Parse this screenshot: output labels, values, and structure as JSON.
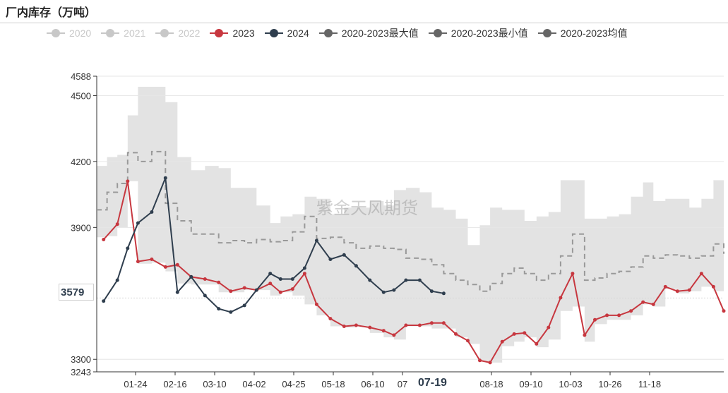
{
  "title": "厂内库存（万吨）",
  "watermark": "紫金天风期货",
  "legend": [
    {
      "name": "2020",
      "color": "#c8c8c8",
      "active": false,
      "style": "dot"
    },
    {
      "name": "2021",
      "color": "#c8c8c8",
      "active": false,
      "style": "dot"
    },
    {
      "name": "2022",
      "color": "#c8c8c8",
      "active": false,
      "style": "dot"
    },
    {
      "name": "2023",
      "color": "#c7373f",
      "active": true,
      "style": "dot"
    },
    {
      "name": "2024",
      "color": "#2f3e4e",
      "active": true,
      "style": "dot"
    },
    {
      "name": "2020-2023最大值",
      "color": "#666666",
      "active": true,
      "style": "dot"
    },
    {
      "name": "2020-2023最小值",
      "color": "#666666",
      "active": true,
      "style": "dot"
    },
    {
      "name": "2020-2023均值",
      "color": "#666666",
      "active": true,
      "style": "dot"
    }
  ],
  "axis_pointer": {
    "y_value": "3579",
    "x_value": "07-19"
  },
  "chart_data": {
    "type": "line",
    "title": "厂内库存（万吨）",
    "ylim": [
      3243,
      4588
    ],
    "y_ticks": [
      3243,
      3300,
      3579,
      3900,
      4200,
      4500,
      4588
    ],
    "x_tick_labels": [
      "01-24",
      "02-16",
      "03-10",
      "04-02",
      "04-25",
      "05-18",
      "06-10",
      "07",
      "07-19",
      "08-18",
      "09-10",
      "10-03",
      "10-26",
      "11-18"
    ],
    "x_range_days": [
      1,
      366
    ],
    "grid": true,
    "legend_position": "top",
    "series": [
      {
        "name": "2023",
        "color": "#c7373f",
        "x": [
          5,
          13,
          19,
          25,
          33,
          41,
          48,
          56,
          64,
          72,
          79,
          87,
          94,
          102,
          108,
          115,
          122,
          129,
          137,
          145,
          152,
          160,
          168,
          174,
          181,
          189,
          196,
          203,
          210,
          217,
          224,
          230,
          237,
          244,
          250,
          257,
          264,
          271,
          278,
          285,
          291,
          298,
          305,
          312,
          319,
          325,
          332,
          339,
          346,
          353,
          360,
          366
        ],
        "y": [
          3845,
          3915,
          4110,
          3745,
          3755,
          3720,
          3730,
          3675,
          3665,
          3650,
          3610,
          3625,
          3615,
          3645,
          3605,
          3620,
          3690,
          3550,
          3485,
          3450,
          3455,
          3445,
          3430,
          3410,
          3455,
          3455,
          3465,
          3465,
          3415,
          3385,
          3295,
          3285,
          3380,
          3415,
          3420,
          3370,
          3445,
          3580,
          3690,
          3410,
          3480,
          3500,
          3500,
          3520,
          3560,
          3550,
          3630,
          3610,
          3615,
          3690,
          3630,
          3520
        ]
      },
      {
        "name": "2024",
        "color": "#2f3e4e",
        "x": [
          5,
          13,
          19,
          25,
          33,
          41,
          48,
          56,
          64,
          72,
          79,
          87,
          94,
          102,
          108,
          115,
          122,
          129,
          137,
          145,
          152,
          160,
          168,
          174,
          181,
          189,
          196,
          203
        ],
        "y": [
          3565,
          3660,
          3805,
          3920,
          3970,
          4125,
          3605,
          3675,
          3590,
          3530,
          3515,
          3545,
          3615,
          3690,
          3665,
          3665,
          3715,
          3840,
          3755,
          3775,
          3725,
          3660,
          3605,
          3615,
          3660,
          3660,
          3610,
          3600
        ]
      },
      {
        "name": "2020-2023最大值",
        "color": "#666666",
        "style": "band-upper",
        "x": [
          1,
          7,
          13,
          19,
          25,
          33,
          41,
          48,
          56,
          64,
          72,
          79,
          87,
          94,
          102,
          108,
          115,
          122,
          129,
          137,
          145,
          152,
          160,
          168,
          174,
          181,
          189,
          196,
          203,
          210,
          217,
          224,
          230,
          237,
          244,
          250,
          257,
          264,
          271,
          278,
          285,
          291,
          298,
          305,
          312,
          319,
          325,
          332,
          339,
          346,
          353,
          360,
          366
        ],
        "y": [
          4180,
          4220,
          4230,
          4410,
          4540,
          4540,
          4470,
          4220,
          4160,
          4180,
          4170,
          4080,
          4080,
          4000,
          3920,
          3950,
          3960,
          4040,
          4030,
          3960,
          3990,
          3990,
          4020,
          4000,
          4070,
          4080,
          4060,
          3990,
          3980,
          3940,
          3820,
          3910,
          3990,
          3980,
          3980,
          3930,
          3950,
          3970,
          4115,
          4115,
          3940,
          3940,
          3950,
          3960,
          4040,
          4105,
          4020,
          4030,
          4030,
          3990,
          4030,
          4115,
          4110
        ]
      },
      {
        "name": "2020-2023最小值",
        "color": "#666666",
        "style": "band-lower",
        "x": [
          1,
          7,
          13,
          19,
          25,
          33,
          41,
          48,
          56,
          64,
          72,
          79,
          87,
          94,
          102,
          108,
          115,
          122,
          129,
          137,
          145,
          152,
          160,
          168,
          174,
          181,
          189,
          196,
          203,
          210,
          217,
          224,
          230,
          237,
          244,
          250,
          257,
          264,
          271,
          278,
          285,
          291,
          298,
          305,
          312,
          319,
          325,
          332,
          339,
          346,
          353,
          360,
          366
        ],
        "y": [
          3855,
          3860,
          3900,
          4110,
          3735,
          3740,
          3700,
          3645,
          3640,
          3640,
          3605,
          3605,
          3615,
          3615,
          3590,
          3605,
          3590,
          3550,
          3500,
          3450,
          3445,
          3450,
          3420,
          3400,
          3390,
          3450,
          3450,
          3440,
          3440,
          3400,
          3370,
          3290,
          3285,
          3360,
          3380,
          3400,
          3355,
          3390,
          3520,
          3540,
          3380,
          3460,
          3480,
          3480,
          3500,
          3550,
          3540,
          3620,
          3600,
          3610,
          3630,
          3610,
          3520
        ]
      },
      {
        "name": "2020-2023均值",
        "color": "#999999",
        "style": "dashed",
        "x": [
          1,
          7,
          13,
          19,
          25,
          33,
          41,
          48,
          56,
          64,
          72,
          79,
          87,
          94,
          102,
          108,
          115,
          122,
          129,
          137,
          145,
          152,
          160,
          168,
          174,
          181,
          189,
          196,
          203,
          210,
          217,
          224,
          230,
          237,
          244,
          250,
          257,
          264,
          271,
          278,
          285,
          291,
          298,
          305,
          312,
          319,
          325,
          332,
          339,
          346,
          353,
          360,
          366
        ],
        "y": [
          3980,
          4060,
          4100,
          4240,
          4200,
          4245,
          4010,
          3930,
          3870,
          3870,
          3830,
          3840,
          3830,
          3845,
          3835,
          3840,
          3880,
          3950,
          3850,
          3855,
          3830,
          3805,
          3815,
          3805,
          3800,
          3760,
          3755,
          3730,
          3690,
          3660,
          3640,
          3610,
          3645,
          3690,
          3715,
          3690,
          3660,
          3690,
          3770,
          3870,
          3660,
          3670,
          3690,
          3700,
          3720,
          3770,
          3760,
          3775,
          3770,
          3760,
          3770,
          3825,
          3780
        ]
      }
    ]
  }
}
